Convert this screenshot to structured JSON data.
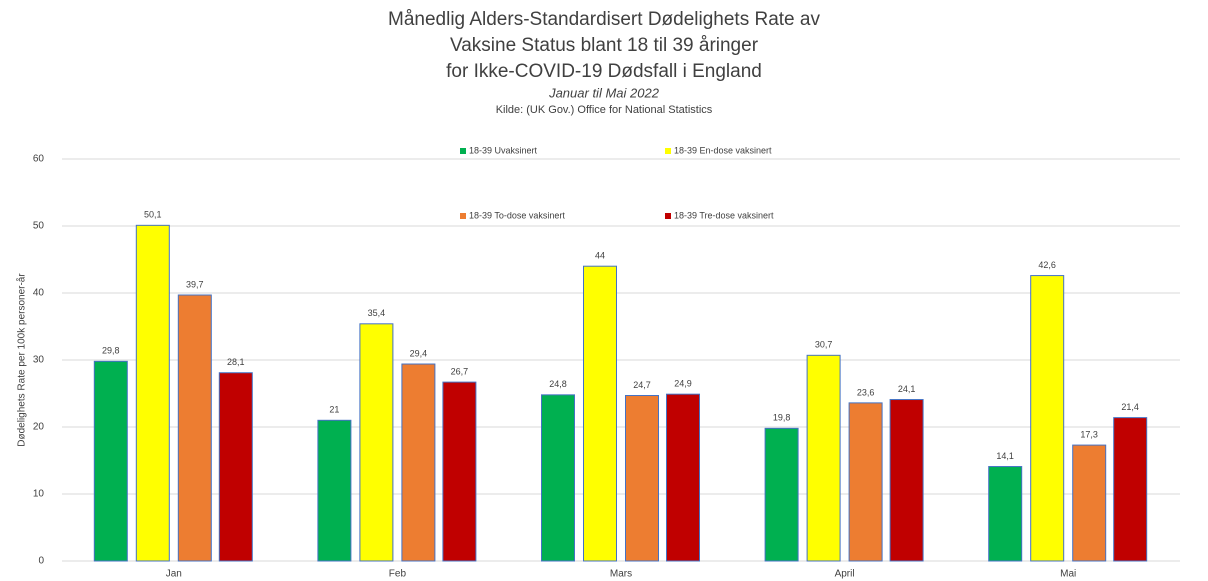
{
  "chart_data": {
    "type": "bar",
    "title": [
      "Månedlig Alders-Standardisert Dødelighets Rate av",
      "Vaksine Status blant 18 til 39 åringer",
      "for Ikke-COVID-19 Dødsfall i England"
    ],
    "subtitle": "Januar til Mai 2022",
    "source": "Kilde: (UK Gov.) Office for National Statistics",
    "y_label": "Dødelighets Rate per 100k personer-år",
    "categories": [
      "Jan",
      "Feb",
      "Mars",
      "April",
      "Mai"
    ],
    "series": [
      {
        "name": "18-39 Uvaksinert",
        "color": "#00b050",
        "values": [
          29.8,
          21,
          24.8,
          19.8,
          14.1
        ],
        "value_labels": [
          "29,8",
          "21",
          "24,8",
          "19,8",
          "14,1"
        ]
      },
      {
        "name": "18-39 En-dose vaksinert",
        "color": "#ffff00",
        "values": [
          50.1,
          35.4,
          44,
          30.7,
          42.6
        ],
        "value_labels": [
          "50,1",
          "35,4",
          "44",
          "30,7",
          "42,6"
        ]
      },
      {
        "name": "18-39 To-dose vaksinert",
        "color": "#ed7d31",
        "values": [
          39.7,
          29.4,
          24.7,
          23.6,
          17.3
        ],
        "value_labels": [
          "39,7",
          "29,4",
          "24,7",
          "23,6",
          "17,3"
        ]
      },
      {
        "name": "18-39 Tre-dose vaksinert",
        "color": "#c00000",
        "values": [
          28.1,
          26.7,
          24.9,
          24.1,
          21.4
        ],
        "value_labels": [
          "28,1",
          "26,7",
          "24,9",
          "24,1",
          "21,4"
        ]
      }
    ],
    "ylim": [
      0,
      60
    ],
    "yticks": [
      0,
      10,
      20,
      30,
      40,
      50,
      60
    ],
    "grid": true
  }
}
